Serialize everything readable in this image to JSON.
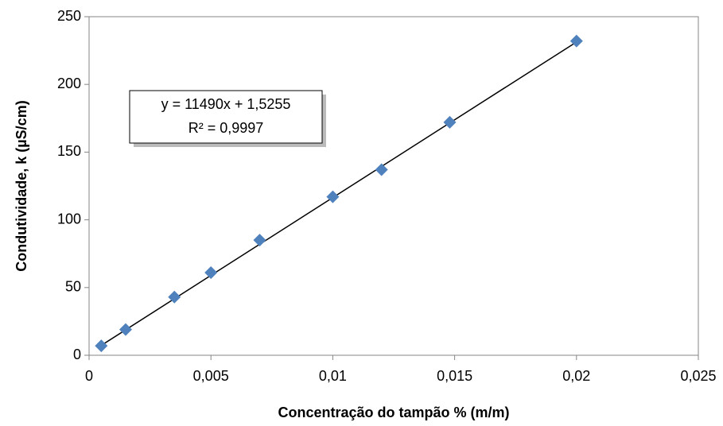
{
  "chart_data": {
    "type": "scatter",
    "x_label": "Concentração do tampão % (m/m)",
    "y_label": "Condutividade, k (µS/cm)",
    "series": [
      {
        "color": "#4f81bd",
        "x": [
          0.0005,
          0.0015,
          0.0035,
          0.005,
          0.007,
          0.01,
          0.012,
          0.0148,
          0.02
        ],
        "values": [
          7,
          19,
          43,
          61,
          85,
          117,
          137,
          172,
          232
        ]
      }
    ],
    "xlim": [
      0,
      0.025
    ],
    "xticks": [
      0,
      {
        "value": 0.005,
        "label": "0,005"
      },
      {
        "value": 0.01,
        "label": "0,01"
      },
      {
        "value": 0.015,
        "label": "0,015"
      },
      {
        "value": 0.02,
        "label": "0,02"
      },
      {
        "value": 0.025,
        "label": "0,025"
      }
    ],
    "ylim": [
      0,
      250
    ],
    "yticks": [
      0,
      50,
      100,
      150,
      200,
      250
    ],
    "trendline": {
      "slope": 11490,
      "intercept": 1.5255,
      "color": "#000000",
      "equation": "y = 11490x + 1,5255",
      "r2": "R² = 0,9997"
    }
  }
}
